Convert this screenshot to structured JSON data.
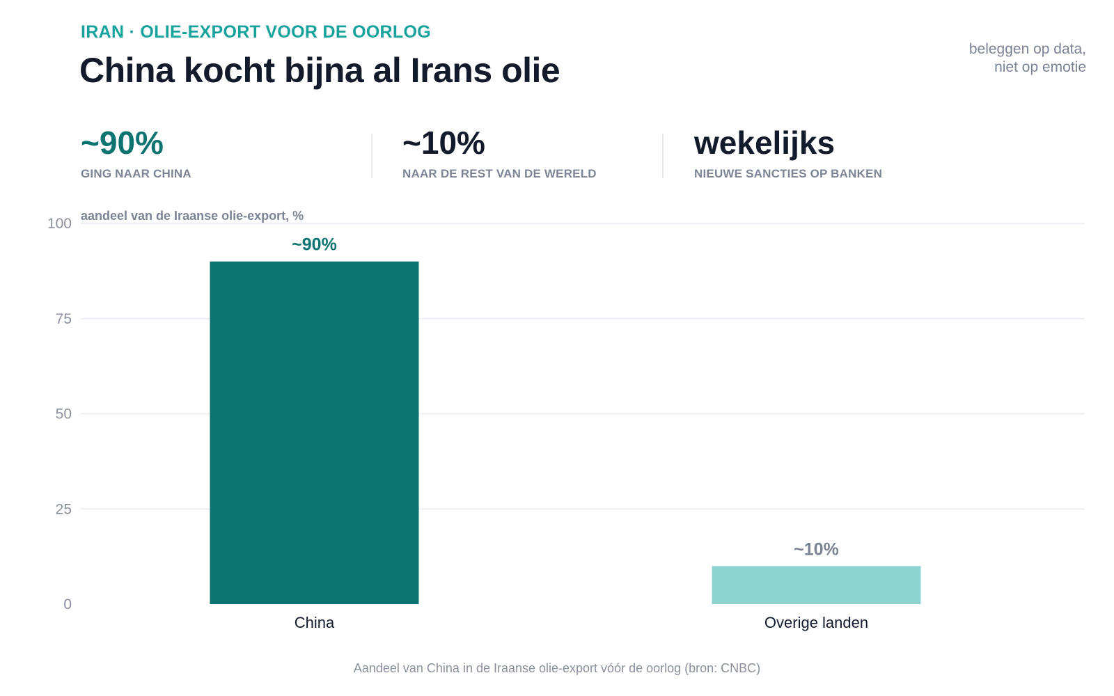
{
  "header": {
    "kicker": "IRAN · OLIE-EXPORT VOOR DE OORLOG",
    "title": "China kocht bijna al Irans olie",
    "tagline_line1": "beleggen op data,",
    "tagline_line2": "niet op emotie"
  },
  "stats": [
    {
      "value": "~90%",
      "label": "GING NAAR CHINA"
    },
    {
      "value": "~10%",
      "label": "NAAR DE REST VAN DE WERELD"
    },
    {
      "value": "wekelijks",
      "label": "NIEUWE SANCTIES OP BANKEN"
    }
  ],
  "chart_data": {
    "type": "bar",
    "title": "",
    "ylabel": "aandeel van de Iraanse olie-export, %",
    "xlabel": "",
    "categories": [
      "China",
      "Overige landen"
    ],
    "values": [
      90,
      10
    ],
    "value_labels": [
      "~90%",
      "~10%"
    ],
    "ylim": [
      0,
      100
    ],
    "yticks": [
      0,
      25,
      50,
      75,
      100
    ],
    "grid": true,
    "colors": [
      "#0c7470",
      "#8dd4d1"
    ],
    "label_colors": [
      "#0c7470",
      "#7c8494"
    ]
  },
  "footer": {
    "caption": "Aandeel van China in de Iraanse olie-export vóór de oorlog (bron: CNBC)"
  }
}
